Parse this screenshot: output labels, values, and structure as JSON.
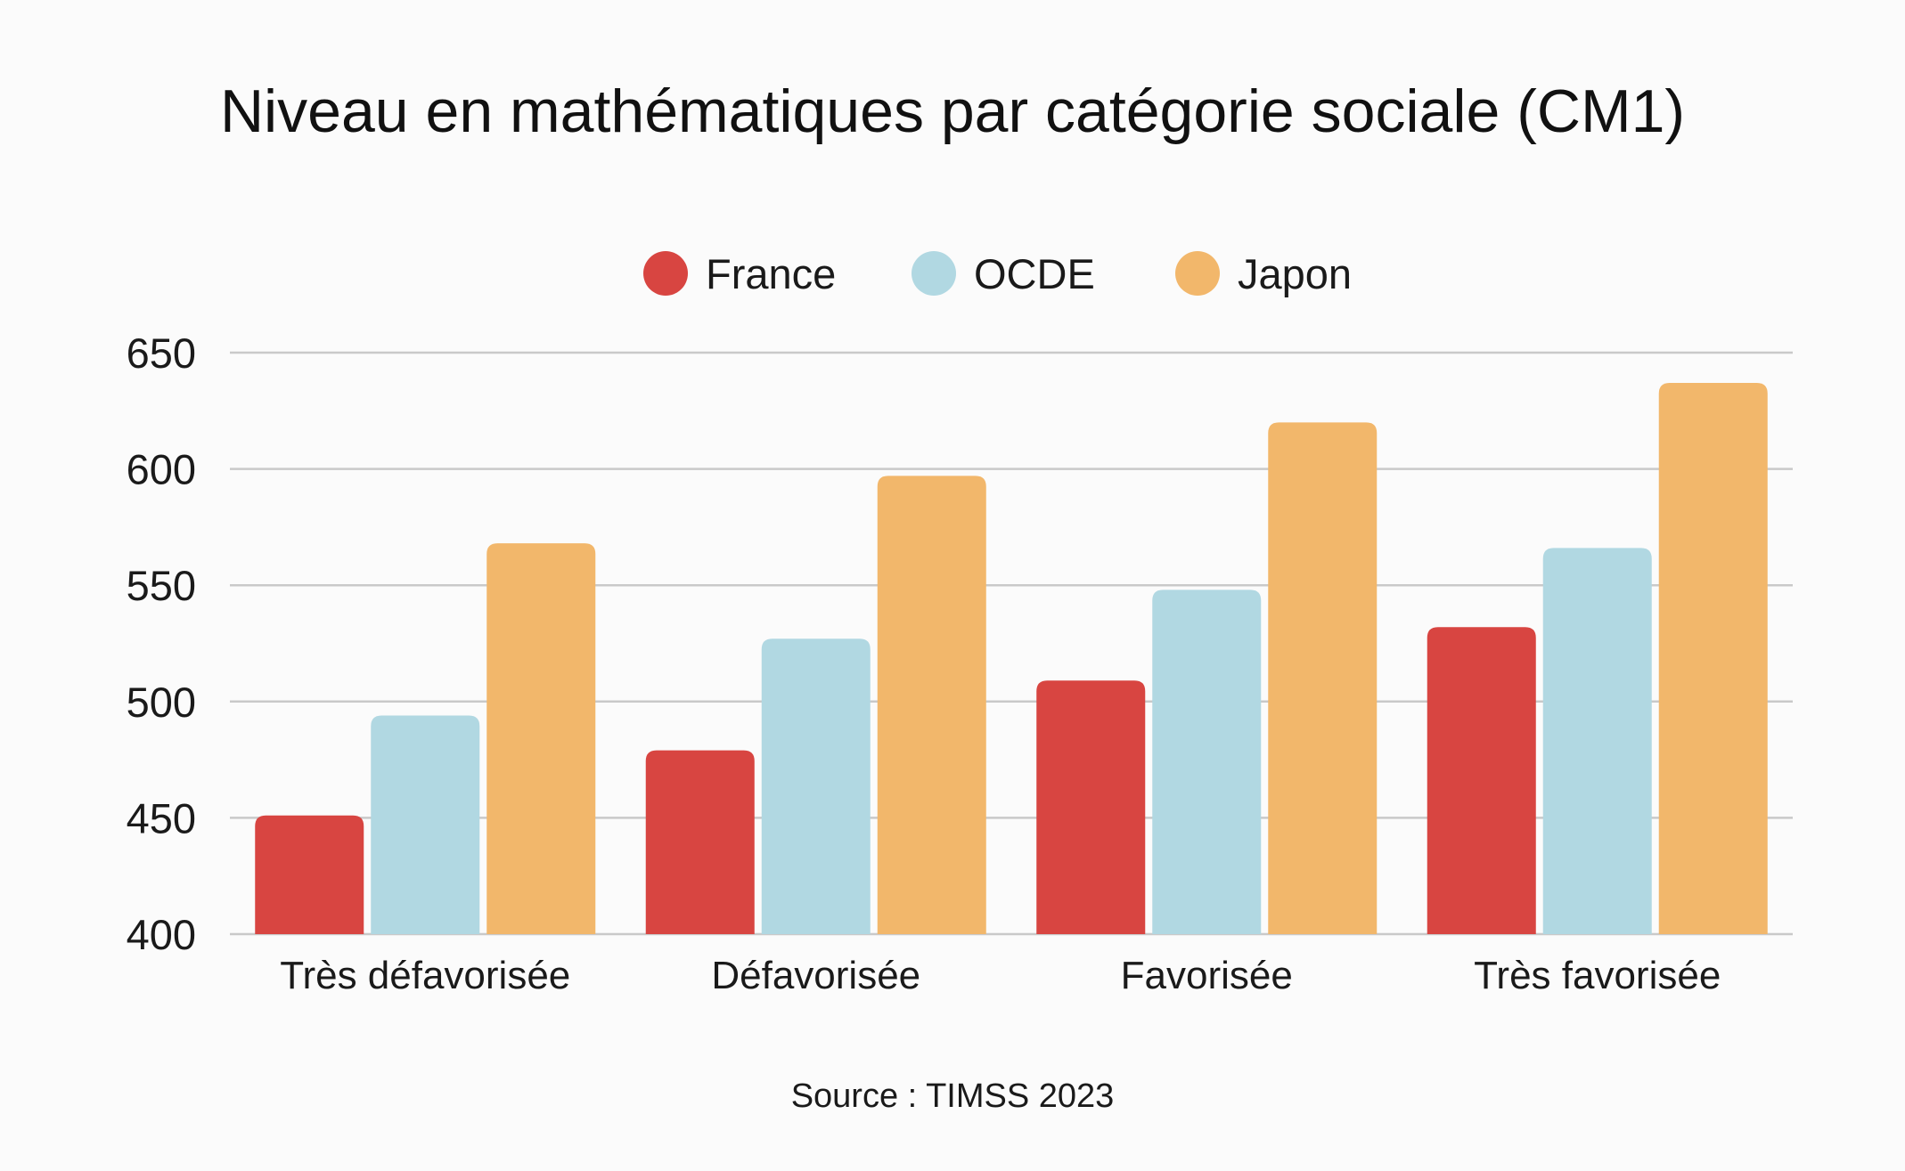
{
  "chart_data": {
    "type": "bar",
    "title": "Niveau en mathématiques par catégorie sociale (CM1)",
    "categories": [
      "Très défavorisée",
      "Défavorisée",
      "Favorisée",
      "Très favorisée"
    ],
    "series": [
      {
        "name": "France",
        "color": "#d84541",
        "values": [
          451,
          479,
          509,
          532
        ]
      },
      {
        "name": "OCDE",
        "color": "#b1d8e2",
        "values": [
          494,
          527,
          548,
          566
        ]
      },
      {
        "name": "Japon",
        "color": "#f2b76b",
        "values": [
          568,
          597,
          620,
          637
        ]
      }
    ],
    "ylim": [
      400,
      650
    ],
    "yticks": [
      650,
      600,
      550,
      500,
      450,
      400
    ],
    "grid": true,
    "legend_position": "top-center",
    "source": "Source : TIMSS 2023"
  }
}
